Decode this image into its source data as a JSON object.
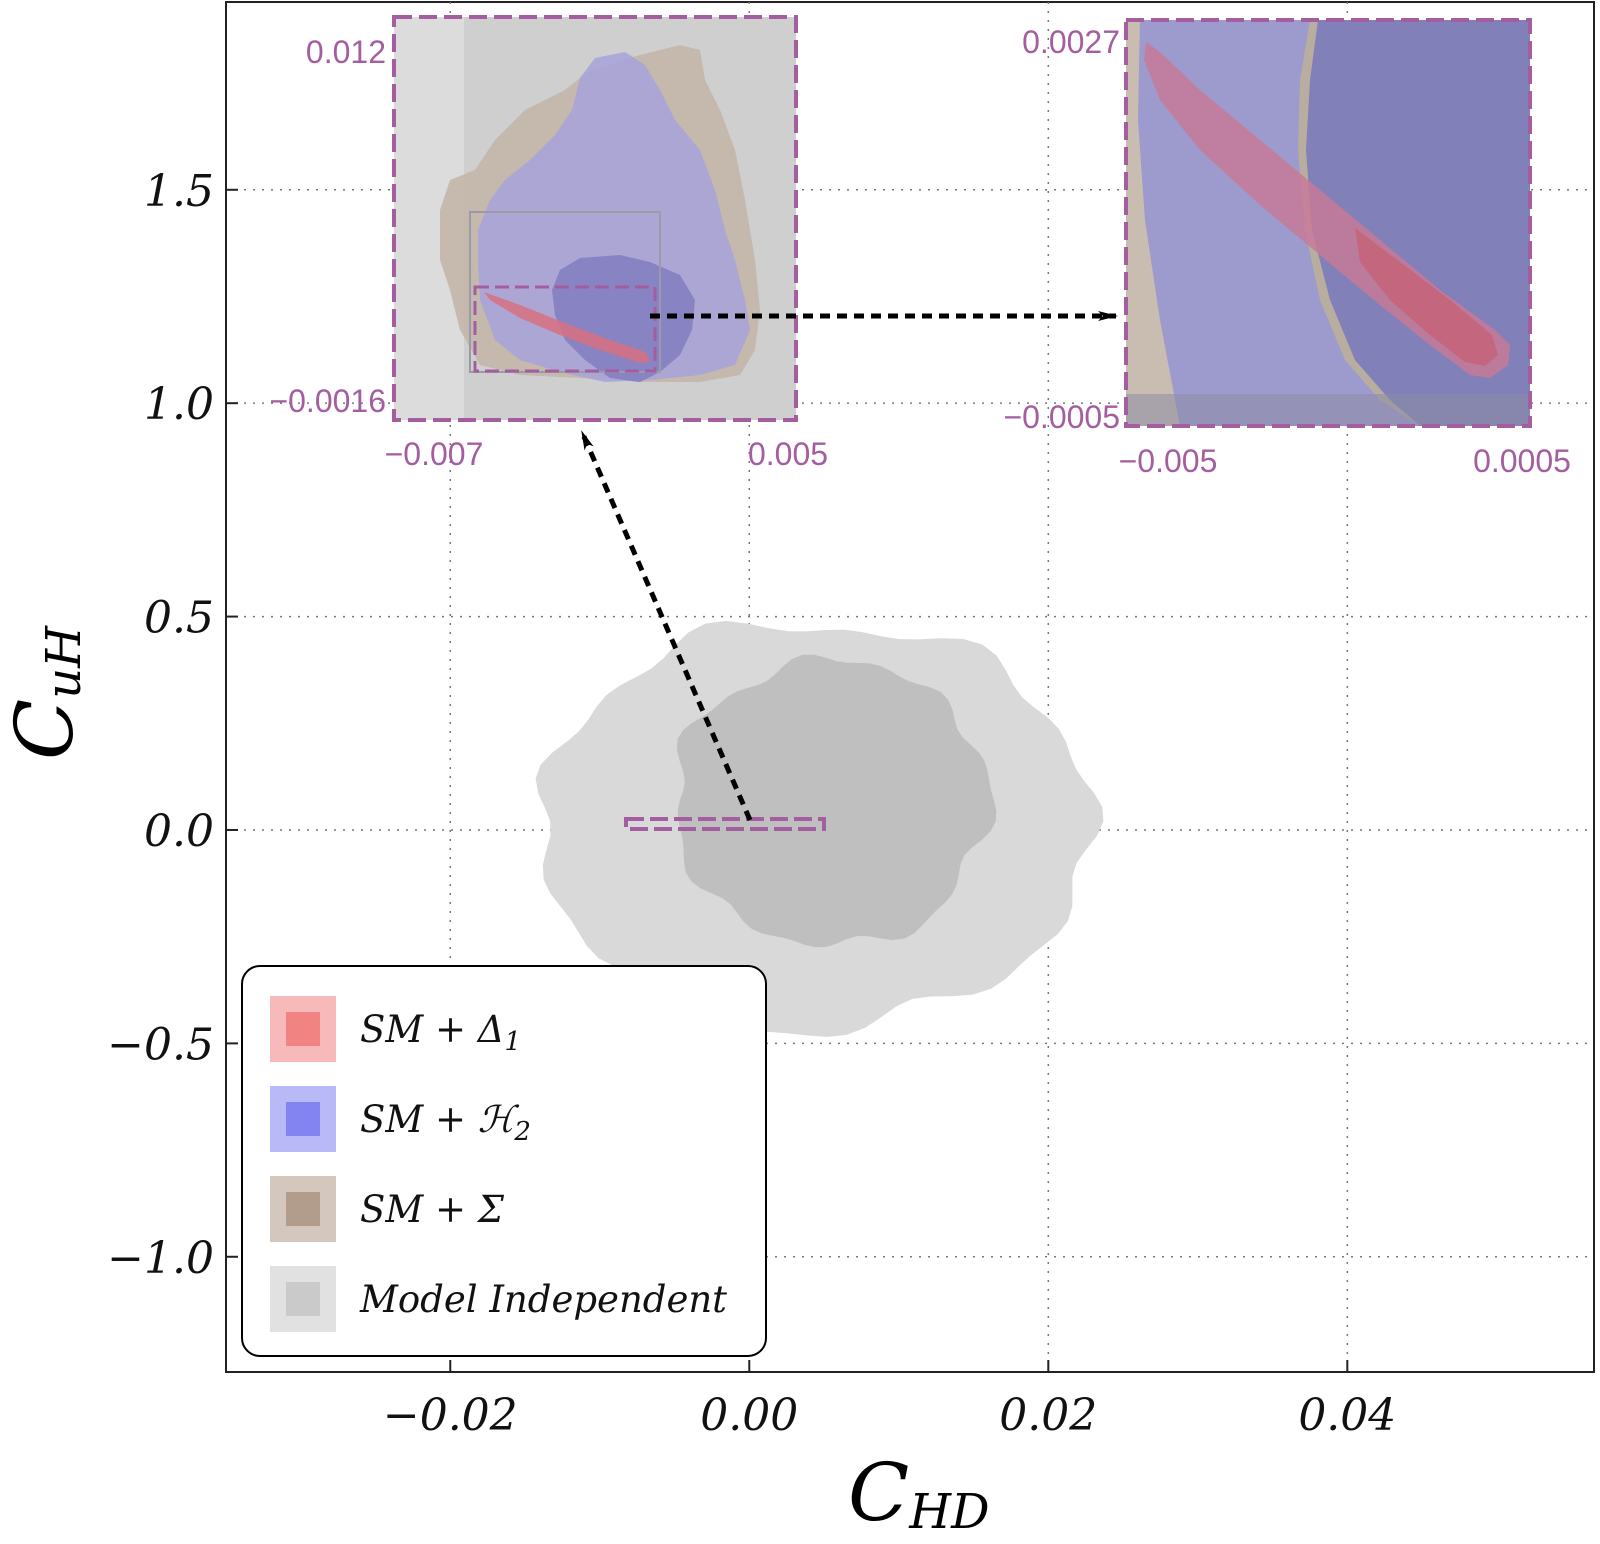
{
  "chart_data": {
    "type": "contour",
    "xlabel": "C",
    "xlabel_sub": "HD",
    "ylabel": "C",
    "ylabel_sub": "uH",
    "xlim": [
      -0.035,
      0.0565
    ],
    "ylim": [
      -1.27,
      1.94
    ],
    "x_ticks": [
      -0.02,
      0.0,
      0.02,
      0.04
    ],
    "x_tick_labels": [
      "−0.02",
      "0.00",
      "0.02",
      "0.04"
    ],
    "y_ticks": [
      1.5,
      1.0,
      0.5,
      0.0,
      -0.5,
      -1.0
    ],
    "y_tick_labels": [
      "1.5",
      "1.0",
      "0.5",
      "0.0",
      "−0.5",
      "−1.0"
    ],
    "grid": true,
    "series": [
      {
        "name": "Model Independent",
        "color": "#c8c8c8",
        "regions": [
          {
            "level": "outer",
            "center": [
              0.0045,
              0.02
            ],
            "rx": 0.0185,
            "ry": 0.475
          },
          {
            "level": "inner",
            "center": [
              0.0055,
              0.07
            ],
            "rx": 0.0105,
            "ry": 0.335
          }
        ]
      },
      {
        "name": "SM + Δ₁",
        "color": "#f08080"
      },
      {
        "name": "SM + ℋ₂",
        "color": "#8080f0"
      },
      {
        "name": "SM + Σ",
        "color": "#b09a88"
      }
    ],
    "insets": [
      {
        "x_range_labels": [
          "−0.007",
          "0.005"
        ],
        "y_range_labels": [
          "0.012",
          "−0.0016"
        ]
      },
      {
        "x_range_labels": [
          "−0.005",
          "0.0005"
        ],
        "y_range_labels": [
          "0.0027",
          "−0.0005"
        ]
      }
    ],
    "legend": {
      "placement": "bottom-left",
      "entries": [
        {
          "label": "SM + Δ",
          "sub": "1",
          "color": "#f08080"
        },
        {
          "label": "SM + ℋ",
          "sub": "2",
          "color": "#8080f0"
        },
        {
          "label": "SM + Σ",
          "sub": "",
          "color": "#b09a88"
        },
        {
          "label": "Model Independent",
          "sub": "",
          "color": "#c8c8c8"
        }
      ]
    }
  },
  "colors": {
    "inset_frame": "#a45ea0",
    "model_independent_light": "#d9d9d9",
    "model_independent_dark": "#bdbdbd",
    "blue_region": "#7b78b8",
    "tan_region": "#bcb0a8",
    "red_region": "#d46a78"
  }
}
